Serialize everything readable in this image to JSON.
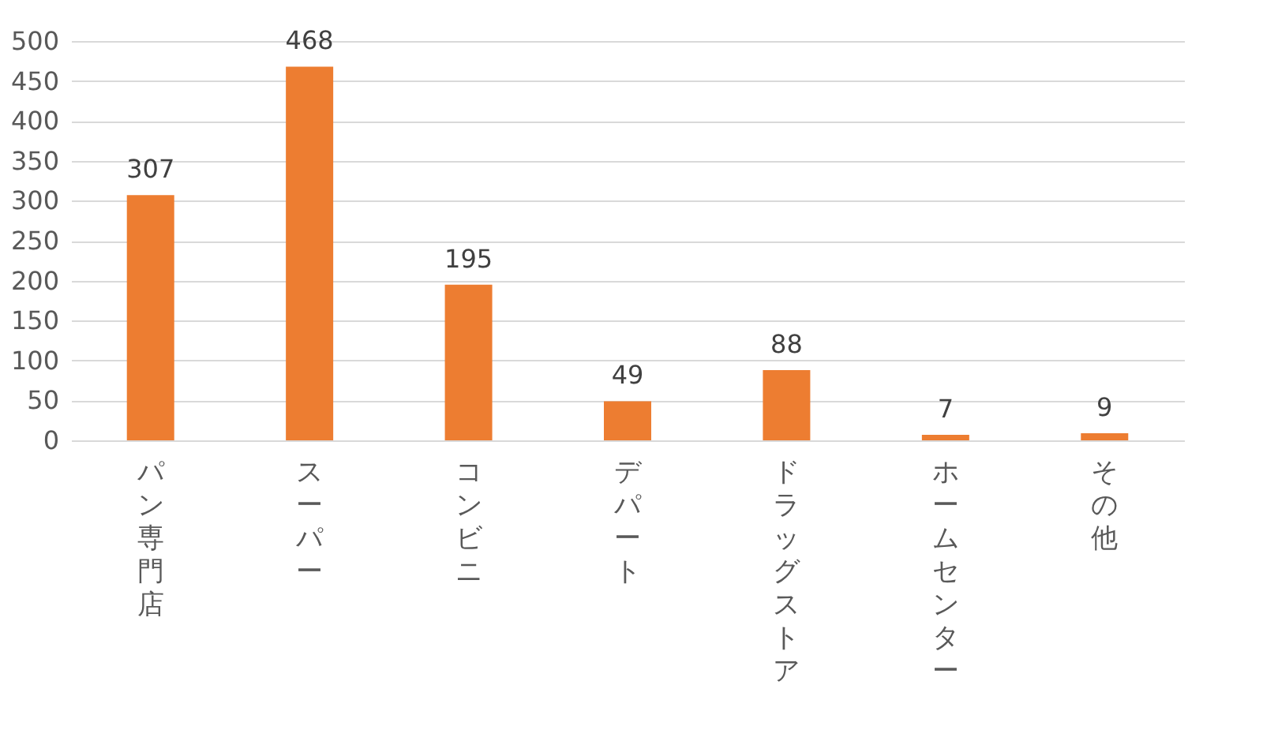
{
  "chart_data": {
    "type": "bar",
    "categories": [
      "パン専門店",
      "スーパー",
      "コンビニ",
      "デパート",
      "ドラッグストア",
      "ホームセンター",
      "その他"
    ],
    "values": [
      307,
      468,
      195,
      49,
      88,
      7,
      9
    ],
    "color": "#ed7d31",
    "ylim": [
      0,
      500
    ],
    "yticks": [
      0,
      50,
      100,
      150,
      200,
      250,
      300,
      350,
      400,
      450,
      500
    ],
    "grid": "y",
    "data_labels": true,
    "legend": false
  }
}
